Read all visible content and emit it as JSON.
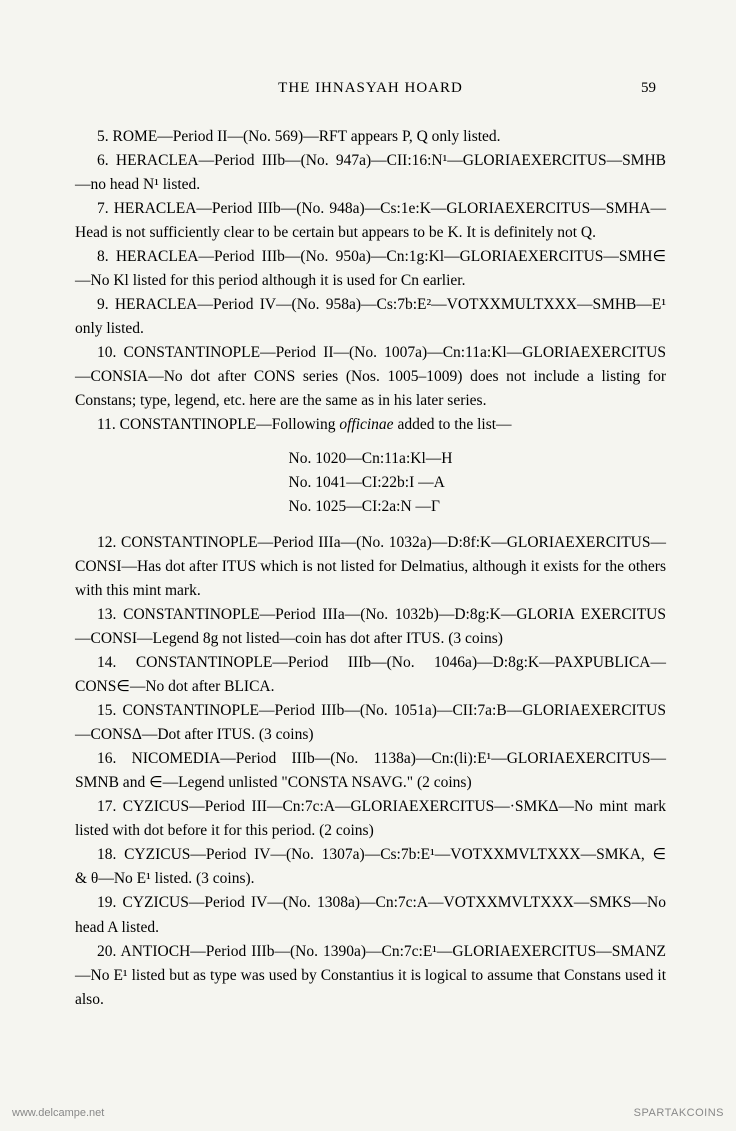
{
  "header": {
    "title": "THE IHNASYAH HOARD",
    "page_number": "59"
  },
  "entries": [
    {
      "text": "5. ROME—Period II—(No. 569)—RFT appears P, Q only listed."
    },
    {
      "text": "6. HERACLEA—Period IIIb—(No. 947a)—CII:16:N¹—GLORIA­EXERCITUS—SMHB—no head N¹ listed."
    },
    {
      "text": "7. HERACLEA—Period IIIb—(No. 948a)—Cs:1e:K—GLORIA­EXERCITUS—SMHA—Head is not sufficiently clear to be certain but appears to be K. It is definitely not Q."
    },
    {
      "text": "8. HERACLEA—Period IIIb—(No. 950a)—Cn:1g:Kl—GLORIA­EXERCITUS—SMH∈—No Kl listed for this period although it is used for Cn earlier."
    },
    {
      "text": "9. HERACLEA—Period IV—(No. 958a)—Cs:7b:E²—VOTXXMU­LTXXX—SMHB—E¹ only listed."
    },
    {
      "text": "10. CONSTANTINOPLE—Period II—(No. 1007a)—Cn:11a:Kl—GLORIAEXERCITUS—CONSIA—No dot after CONS series (Nos. 1005–1009) does not include a listing for Constans; type, legend, etc. here are the same as in his later series."
    }
  ],
  "entry11_prefix": "11. CONSTANTINOPLE—Following ",
  "entry11_italic": "officinae",
  "entry11_suffix": " added to the list—",
  "center_lines": [
    "No. 1020—Cn:11a:Kl—H",
    "No. 1041—CI:22b:I  —A",
    "No. 1025—CI:2a:N   —Γ"
  ],
  "entries2": [
    {
      "text": "12. CONSTANTINOPLE—Period IIIa—(No. 1032a)—D:8f:K—GLORIAEXERCITUS—CONSI—Has dot after ITUS which is not listed for Delmatius, although it exists for the others with this mint mark."
    },
    {
      "text": "13. CONSTANTINOPLE—Period IIIa—(No. 1032b)—D:8g:K—GLORIA EXERCITUS—CONSI—Legend 8g not listed—coin has dot after ITUS. (3 coins)"
    },
    {
      "text": "14. CONSTANTINOPLE—Period IIIb—(No. 1046a)—D:8g:K—PAXPUBLICA—CONS∈—No dot after BLICA."
    },
    {
      "text": "15. CONSTANTINOPLE—Period IIIb—(No. 1051a)—CII:7a:B—GLORIAEXERCITUS—CONSΔ—Dot after ITUS. (3 coins)"
    },
    {
      "text": "16. NICOMEDIA—Period IIIb—(No. 1138a)—Cn:(li):E¹—GLO­RIAEXERCITUS—SMNB and ∈—Legend unlisted \"CONSTA NSAVG.\" (2 coins)"
    },
    {
      "text": "17. CYZICUS—Period III—Cn:7c:A—GLORIAEXERCITUS—·SMKΔ—No mint mark listed with dot before it for this period. (2 coins)"
    },
    {
      "text": "18. CYZICUS—Period IV—(No. 1307a)—Cs:7b:E¹—VOTXXMV­LTXXX—SMKA, ∈ & θ—No E¹ listed. (3 coins)."
    },
    {
      "text": "19. CYZICUS—Period IV—(No. 1308a)—Cn:7c:A—VOTXXMV­LTXXX—SMKS—No head A listed."
    },
    {
      "text": "20. ANTIOCH—Period IIIb—(No. 1390a)—Cn:7c:E¹—GLORIA­EXERCITUS—SMANZ—No E¹ listed but as type was used by Con­stantius it is logical to assume that Constans used it also."
    }
  ],
  "watermark_left": "www.delcampe.net",
  "watermark_right": "SPARTAKCOINS"
}
